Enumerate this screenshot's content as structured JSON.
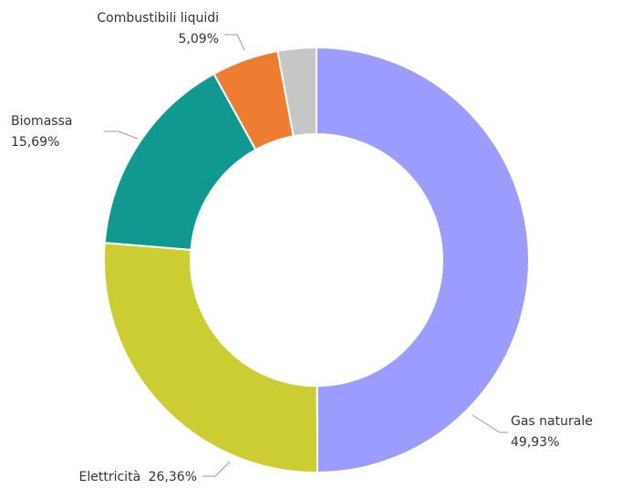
{
  "chart_data": {
    "type": "pie",
    "variant": "donut",
    "title": "",
    "start": "top, clockwise",
    "slices": [
      {
        "name": "Gas naturale",
        "value": 49.93,
        "label": "49,93%",
        "color": "#9c9cff"
      },
      {
        "name": "Elettricità",
        "value": 26.36,
        "label": "26,36%",
        "color": "#cccc33"
      },
      {
        "name": "Biomassa",
        "value": 15.69,
        "label": "15,69%",
        "color": "#109990"
      },
      {
        "name": "Combustibili liquidi",
        "value": 5.09,
        "label": "5,09%",
        "color": "#ed7d31"
      },
      {
        "name": "",
        "value": 2.93,
        "label": "",
        "color": "#c6c6c6"
      }
    ]
  }
}
